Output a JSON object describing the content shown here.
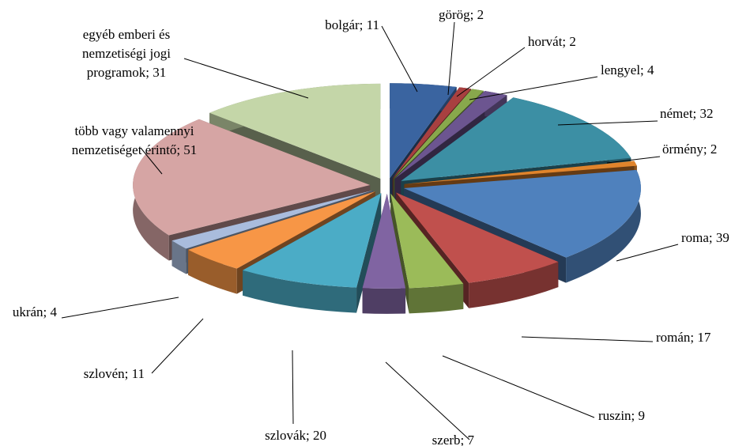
{
  "chart_data": {
    "type": "pie",
    "style": "3d-exploded",
    "start_angle_deg": -90,
    "direction": "clockwise",
    "slices": [
      {
        "label": "bolgár; 11",
        "value": 11,
        "color": "#3A64A0"
      },
      {
        "label": "görög; 2",
        "value": 2,
        "color": "#A84040"
      },
      {
        "label": "horvát; 2",
        "value": 2,
        "color": "#88A84C"
      },
      {
        "label": "lengyel; 4",
        "value": 4,
        "color": "#6C5590"
      },
      {
        "label": "német; 32",
        "value": 32,
        "color": "#3C8FA4"
      },
      {
        "label": "örmény; 2",
        "value": 2,
        "color": "#E0842C"
      },
      {
        "label": "roma; 39",
        "value": 39,
        "color": "#4F81BD"
      },
      {
        "label": "román; 17",
        "value": 17,
        "color": "#C0504D"
      },
      {
        "label": "ruszin; 9",
        "value": 9,
        "color": "#9BBB59"
      },
      {
        "label": "szerb; 7",
        "value": 7,
        "color": "#8064A2"
      },
      {
        "label": "szlovák; 20",
        "value": 20,
        "color": "#4BACC6"
      },
      {
        "label": "szlovén; 11",
        "value": 11,
        "color": "#F79646"
      },
      {
        "label": "ukrán; 4",
        "value": 4,
        "color": "#A9BCDD"
      },
      {
        "label": "több vagy valamennyi nemzetiséget érintő; 51",
        "value": 51,
        "color": "#D6A5A4"
      },
      {
        "label": "egyéb emberi és nemzetiségi jogi programok; 31",
        "value": 31,
        "color": "#C4D6A8"
      }
    ]
  }
}
